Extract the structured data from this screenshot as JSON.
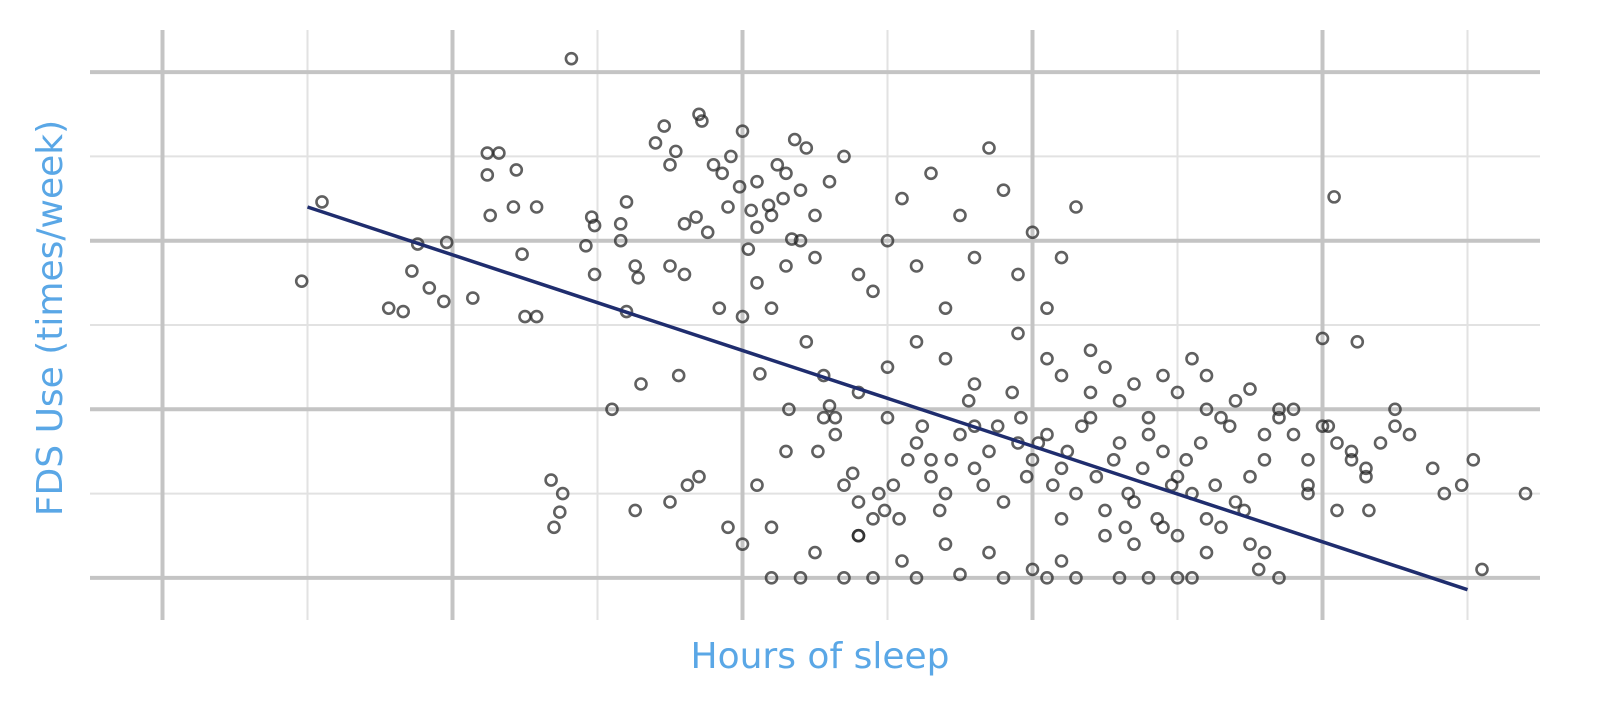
{
  "chart_data": {
    "type": "scatter",
    "title": "",
    "xlabel": "Hours of sleep",
    "ylabel": "FDS Use (times/week)",
    "xlim": [
      3.25,
      8.25
    ],
    "ylim": [
      -0.25,
      3.25
    ],
    "x_major_grid": [
      3.5,
      4.5,
      5.5,
      6.5,
      7.5
    ],
    "x_minor_grid": [
      4.0,
      5.0,
      6.0,
      7.0,
      8.0
    ],
    "y_major_grid": [
      0,
      1,
      2,
      3
    ],
    "y_minor_grid": [
      0.5,
      1.5,
      2.5
    ],
    "grid": true,
    "tick_labels_visible": false,
    "colors": {
      "point": "#222222",
      "fit_line": "#1f2d6e",
      "axis_title": "#5aa7e6",
      "grid": "#c4c4c4"
    },
    "fit_line": {
      "x": [
        4.0,
        8.0
      ],
      "y": [
        2.2,
        -0.07
      ]
    },
    "points": [
      [
        3.98,
        1.76
      ],
      [
        4.05,
        2.23
      ],
      [
        4.28,
        1.6
      ],
      [
        4.33,
        1.58
      ],
      [
        4.36,
        1.82
      ],
      [
        4.38,
        1.98
      ],
      [
        4.42,
        1.72
      ],
      [
        4.48,
        1.99
      ],
      [
        4.47,
        1.64
      ],
      [
        4.57,
        1.66
      ],
      [
        4.62,
        2.52
      ],
      [
        4.62,
        2.39
      ],
      [
        4.66,
        2.52
      ],
      [
        4.63,
        2.15
      ],
      [
        4.75,
        1.55
      ],
      [
        4.71,
        2.2
      ],
      [
        4.72,
        2.42
      ],
      [
        4.74,
        1.92
      ],
      [
        4.79,
        2.2
      ],
      [
        4.79,
        1.55
      ],
      [
        4.84,
        0.58
      ],
      [
        4.87,
        0.39
      ],
      [
        4.85,
        0.3
      ],
      [
        4.88,
        0.5
      ],
      [
        4.96,
        1.97
      ],
      [
        4.99,
        2.09
      ],
      [
        4.91,
        3.08
      ],
      [
        4.99,
        1.8
      ],
      [
        4.98,
        2.14
      ],
      [
        5.05,
        1.0
      ],
      [
        5.08,
        2.0
      ],
      [
        5.08,
        2.1
      ],
      [
        5.1,
        2.23
      ],
      [
        5.13,
        1.85
      ],
      [
        5.1,
        1.58
      ],
      [
        5.14,
        1.78
      ],
      [
        5.15,
        1.15
      ],
      [
        5.13,
        0.4
      ],
      [
        5.2,
        2.58
      ],
      [
        5.23,
        2.68
      ],
      [
        5.25,
        2.45
      ],
      [
        5.27,
        2.53
      ],
      [
        5.28,
        1.2
      ],
      [
        5.31,
        0.55
      ],
      [
        5.3,
        2.1
      ],
      [
        5.34,
        2.14
      ],
      [
        5.36,
        2.71
      ],
      [
        5.38,
        2.05
      ],
      [
        5.42,
        1.6
      ],
      [
        5.43,
        2.4
      ],
      [
        5.46,
        2.5
      ],
      [
        5.49,
        2.32
      ],
      [
        5.52,
        1.95
      ],
      [
        5.53,
        2.18
      ],
      [
        5.55,
        2.08
      ],
      [
        5.56,
        1.21
      ],
      [
        5.59,
        2.21
      ],
      [
        5.62,
        2.45
      ],
      [
        5.64,
        2.25
      ],
      [
        5.67,
        2.01
      ],
      [
        5.68,
        2.6
      ],
      [
        5.66,
        1.0
      ],
      [
        5.7,
        2.3
      ],
      [
        5.72,
        2.55
      ],
      [
        5.75,
        2.15
      ],
      [
        5.76,
        0.75
      ],
      [
        5.78,
        0.95
      ],
      [
        5.8,
        1.02
      ],
      [
        5.82,
        0.95
      ],
      [
        5.82,
        0.85
      ],
      [
        5.85,
        0.55
      ],
      [
        5.88,
        0.62
      ],
      [
        5.9,
        0.45
      ],
      [
        5.9,
        0.25
      ],
      [
        5.95,
        0.35
      ],
      [
        5.97,
        0.5
      ],
      [
        5.99,
        0.4
      ],
      [
        6.02,
        0.55
      ],
      [
        6.04,
        0.35
      ],
      [
        6.07,
        0.7
      ],
      [
        6.1,
        0.8
      ],
      [
        6.12,
        0.9
      ],
      [
        6.15,
        0.6
      ],
      [
        6.18,
        0.4
      ],
      [
        6.2,
        0.5
      ],
      [
        6.22,
        0.7
      ],
      [
        6.25,
        0.85
      ],
      [
        6.28,
        1.05
      ],
      [
        6.3,
        0.65
      ],
      [
        6.33,
        0.55
      ],
      [
        6.35,
        0.75
      ],
      [
        6.38,
        0.9
      ],
      [
        6.4,
        0.45
      ],
      [
        6.43,
        1.1
      ],
      [
        6.46,
        0.95
      ],
      [
        6.48,
        0.6
      ],
      [
        6.5,
        0.7
      ],
      [
        6.52,
        0.8
      ],
      [
        6.55,
        0.85
      ],
      [
        6.57,
        0.55
      ],
      [
        6.6,
        0.65
      ],
      [
        6.62,
        0.75
      ],
      [
        6.65,
        0.5
      ],
      [
        6.67,
        0.9
      ],
      [
        6.7,
        1.1
      ],
      [
        6.72,
        0.6
      ],
      [
        6.75,
        0.4
      ],
      [
        6.78,
        0.7
      ],
      [
        6.8,
        0.8
      ],
      [
        6.83,
        0.5
      ],
      [
        6.85,
        0.45
      ],
      [
        6.88,
        0.65
      ],
      [
        6.9,
        0.85
      ],
      [
        6.93,
        0.35
      ],
      [
        6.95,
        0.75
      ],
      [
        6.98,
        0.55
      ],
      [
        7.0,
        0.6
      ],
      [
        7.03,
        0.7
      ],
      [
        7.05,
        0.5
      ],
      [
        7.08,
        0.8
      ],
      [
        7.1,
        0.35
      ],
      [
        7.13,
        0.55
      ],
      [
        7.15,
        0.3
      ],
      [
        7.18,
        0.9
      ],
      [
        7.2,
        0.45
      ],
      [
        7.23,
        0.4
      ],
      [
        7.25,
        0.6
      ],
      [
        7.28,
        0.05
      ],
      [
        7.3,
        0.15
      ],
      [
        7.35,
        1.0
      ],
      [
        7.4,
        0.85
      ],
      [
        7.45,
        0.5
      ],
      [
        7.5,
        1.42
      ],
      [
        7.52,
        0.9
      ],
      [
        7.55,
        0.4
      ],
      [
        7.6,
        0.75
      ],
      [
        7.65,
        0.6
      ],
      [
        7.75,
        1.0
      ],
      [
        7.88,
        0.65
      ],
      [
        8.02,
        0.7
      ],
      [
        5.85,
        0.0
      ],
      [
        5.95,
        0.0
      ],
      [
        6.1,
        0.0
      ],
      [
        6.25,
        0.02
      ],
      [
        6.4,
        0.0
      ],
      [
        6.55,
        0.0
      ],
      [
        6.65,
        0.0
      ],
      [
        6.8,
        0.0
      ],
      [
        6.9,
        0.0
      ],
      [
        7.0,
        0.0
      ],
      [
        7.05,
        0.0
      ],
      [
        7.35,
        0.0
      ],
      [
        5.6,
        0.0
      ],
      [
        5.7,
        0.0
      ],
      [
        7.54,
        2.26
      ],
      [
        7.62,
        1.4
      ],
      [
        7.66,
        0.4
      ],
      [
        7.7,
        0.8
      ],
      [
        7.75,
        0.9
      ],
      [
        7.8,
        0.85
      ],
      [
        7.92,
        0.5
      ],
      [
        7.98,
        0.55
      ],
      [
        5.35,
        2.75
      ],
      [
        5.4,
        2.45
      ],
      [
        5.45,
        2.2
      ],
      [
        5.5,
        2.65
      ],
      [
        5.55,
        2.35
      ],
      [
        5.6,
        2.15
      ],
      [
        5.65,
        2.4
      ],
      [
        5.7,
        2.0
      ],
      [
        5.75,
        1.9
      ],
      [
        5.8,
        2.35
      ],
      [
        5.85,
        2.5
      ],
      [
        5.9,
        1.8
      ],
      [
        5.95,
        1.7
      ],
      [
        6.0,
        2.0
      ],
      [
        6.05,
        2.25
      ],
      [
        6.1,
        1.85
      ],
      [
        6.15,
        2.4
      ],
      [
        6.2,
        1.6
      ],
      [
        6.25,
        2.15
      ],
      [
        6.3,
        1.9
      ],
      [
        6.35,
        2.55
      ],
      [
        6.4,
        2.3
      ],
      [
        6.45,
        1.8
      ],
      [
        6.5,
        2.05
      ],
      [
        6.55,
        1.6
      ],
      [
        6.6,
        1.9
      ],
      [
        6.65,
        2.2
      ],
      [
        6.7,
        1.35
      ],
      [
        6.75,
        1.25
      ],
      [
        6.8,
        1.05
      ],
      [
        6.85,
        1.15
      ],
      [
        6.9,
        0.95
      ],
      [
        6.95,
        1.2
      ],
      [
        7.0,
        1.1
      ],
      [
        7.05,
        1.3
      ],
      [
        7.1,
        1.2
      ],
      [
        7.15,
        0.95
      ],
      [
        7.2,
        1.05
      ],
      [
        7.25,
        1.12
      ],
      [
        7.3,
        0.85
      ],
      [
        7.35,
        0.95
      ],
      [
        7.4,
        1.0
      ],
      [
        7.45,
        0.7
      ],
      [
        7.5,
        0.9
      ],
      [
        7.55,
        0.8
      ],
      [
        7.6,
        0.7
      ],
      [
        7.65,
        0.65
      ],
      [
        5.25,
        1.85
      ],
      [
        5.3,
        1.8
      ],
      [
        5.5,
        1.55
      ],
      [
        5.55,
        1.75
      ],
      [
        5.6,
        1.6
      ],
      [
        5.65,
        1.85
      ],
      [
        5.72,
        1.4
      ],
      [
        5.78,
        1.2
      ],
      [
        5.9,
        1.1
      ],
      [
        6.0,
        1.25
      ],
      [
        6.1,
        1.4
      ],
      [
        6.2,
        1.3
      ],
      [
        6.3,
        1.15
      ],
      [
        6.45,
        1.45
      ],
      [
        6.55,
        1.3
      ],
      [
        6.6,
        1.2
      ],
      [
        5.5,
        0.2
      ],
      [
        5.6,
        0.3
      ],
      [
        5.75,
        0.15
      ],
      [
        5.9,
        0.25
      ],
      [
        6.05,
        0.1
      ],
      [
        6.2,
        0.2
      ],
      [
        6.35,
        0.15
      ],
      [
        6.5,
        0.05
      ],
      [
        6.6,
        0.1
      ],
      [
        6.75,
        0.25
      ],
      [
        6.85,
        0.2
      ],
      [
        6.95,
        0.3
      ],
      [
        7.1,
        0.15
      ],
      [
        7.25,
        0.2
      ],
      [
        5.25,
        0.45
      ],
      [
        5.35,
        0.6
      ],
      [
        5.45,
        0.3
      ],
      [
        5.55,
        0.55
      ],
      [
        5.65,
        0.75
      ],
      [
        6.0,
        0.95
      ],
      [
        6.15,
        0.7
      ],
      [
        6.3,
        0.9
      ],
      [
        6.45,
        0.8
      ],
      [
        6.6,
        0.35
      ],
      [
        6.7,
        0.95
      ],
      [
        6.82,
        0.3
      ],
      [
        7.0,
        0.25
      ],
      [
        7.1,
        1.0
      ],
      [
        7.3,
        0.7
      ],
      [
        7.45,
        0.55
      ],
      [
        8.05,
        0.05
      ],
      [
        8.2,
        0.5
      ]
    ]
  }
}
